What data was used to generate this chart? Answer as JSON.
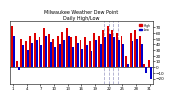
{
  "title": "Milwaukee Weather Dew Point",
  "subtitle": "Daily High/Low",
  "background_color": "#ffffff",
  "bar_width": 0.42,
  "ylim": [
    -30,
    80
  ],
  "yticks": [
    -20,
    -10,
    0,
    10,
    20,
    30,
    40,
    50,
    60,
    70
  ],
  "high_color": "#dd0000",
  "low_color": "#0000cc",
  "dashed_line_color": "#aaaacc",
  "high_values": [
    72,
    10,
    50,
    45,
    55,
    60,
    52,
    68,
    58,
    50,
    55,
    62,
    68,
    52,
    55,
    48,
    52,
    45,
    60,
    55,
    65,
    72,
    65,
    60,
    55,
    20,
    60,
    65,
    55,
    5,
    12
  ],
  "low_values": [
    55,
    -5,
    38,
    30,
    42,
    48,
    38,
    55,
    44,
    36,
    40,
    48,
    55,
    36,
    42,
    32,
    38,
    28,
    48,
    40,
    52,
    58,
    52,
    48,
    40,
    5,
    45,
    50,
    40,
    -10,
    -20
  ],
  "n_bars": 31,
  "dashed_bar_indices": [
    20,
    21,
    22,
    23
  ],
  "legend_high": "High",
  "legend_low": "Low",
  "xtick_every": 3
}
